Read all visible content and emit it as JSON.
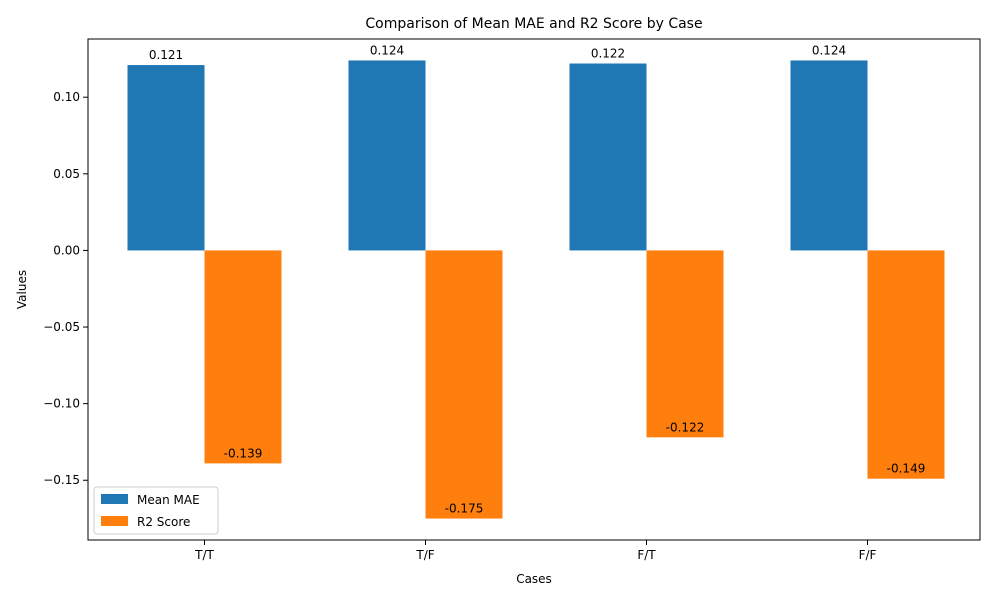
{
  "chart_data": {
    "type": "bar",
    "title": "Comparison of Mean MAE and R2 Score by Case",
    "xlabel": "Cases",
    "ylabel": "Values",
    "categories": [
      "T/T",
      "T/F",
      "F/T",
      "F/F"
    ],
    "series": [
      {
        "name": "Mean MAE",
        "values": [
          0.121,
          0.124,
          0.122,
          0.124
        ],
        "labels": [
          "0.121",
          "0.124",
          "0.122",
          "0.124"
        ],
        "color": "#1f77b4"
      },
      {
        "name": "R2 Score",
        "values": [
          -0.139,
          -0.175,
          -0.122,
          -0.149
        ],
        "labels": [
          "-0.139",
          "-0.175",
          "-0.122",
          "-0.149"
        ],
        "color": "#ff7f0e"
      }
    ],
    "ylim": [
      -0.189,
      0.138
    ],
    "yticks": [
      0.1,
      0.05,
      0.0,
      -0.05,
      -0.1,
      -0.15
    ],
    "ytick_labels": [
      "0.10",
      "0.05",
      "0.00",
      "−0.05",
      "−0.10",
      "−0.15"
    ],
    "grid": false,
    "legend_position": "lower-left"
  }
}
